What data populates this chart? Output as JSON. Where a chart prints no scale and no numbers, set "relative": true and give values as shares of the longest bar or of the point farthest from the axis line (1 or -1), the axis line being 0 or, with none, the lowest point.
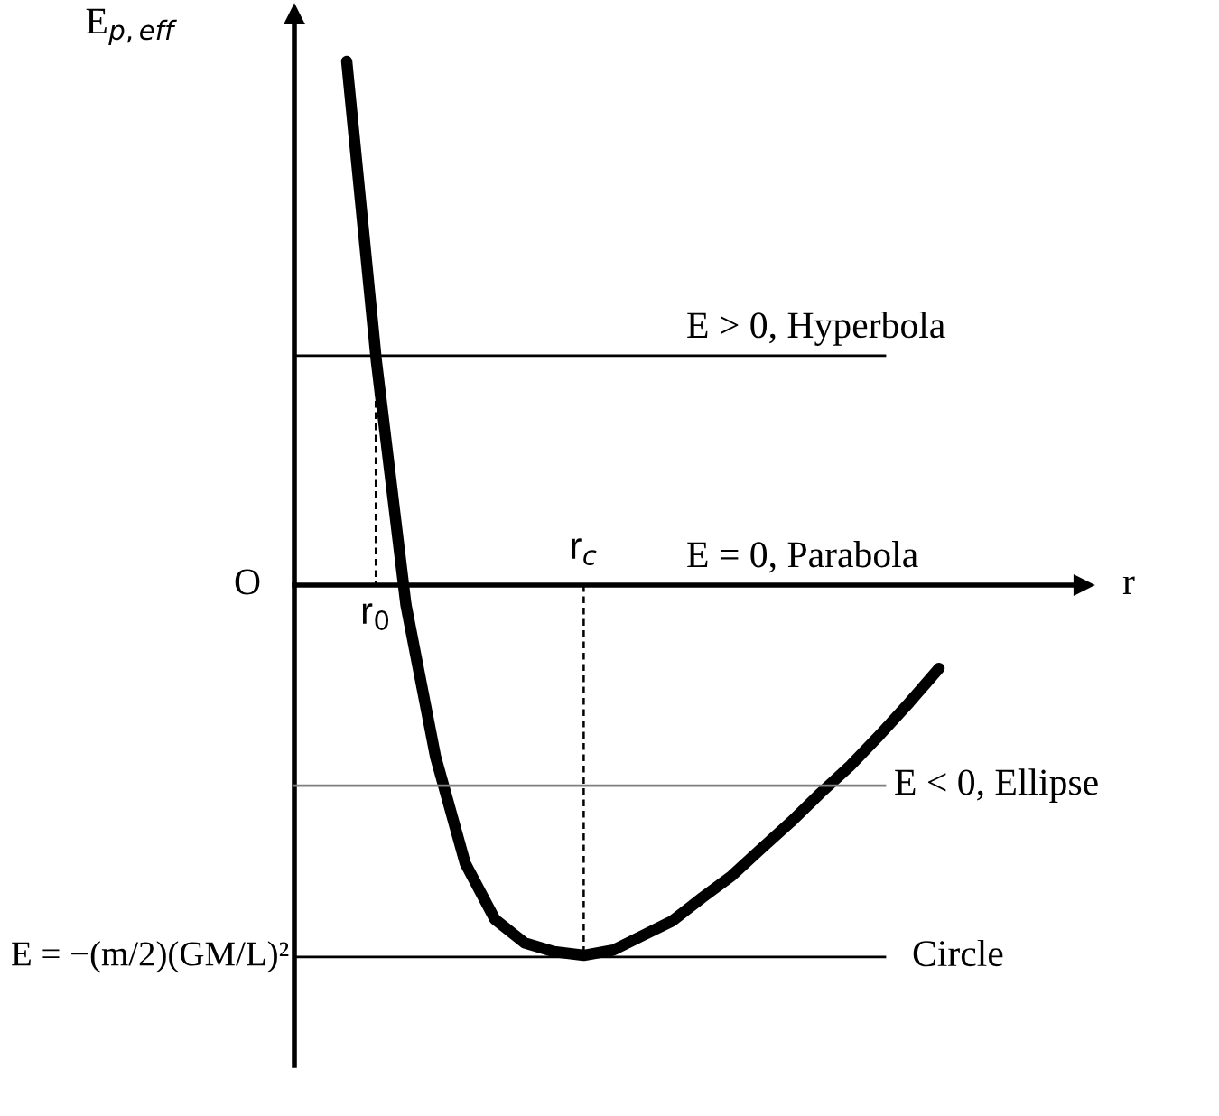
{
  "chart_data": {
    "type": "line",
    "relative": true,
    "xlabel": "r",
    "ylabel": "E$_{p,eff}$",
    "categories": [
      null,
      null,
      null,
      null,
      null,
      null,
      null,
      null,
      null,
      null,
      null,
      null,
      null,
      null,
      null,
      null,
      null,
      null,
      null,
      null,
      null
    ],
    "series": [
      {
        "color": "#000000",
        "values": [
          1.0,
          0.428,
          -0.038,
          -0.328,
          -0.531,
          -0.638,
          -0.683,
          -0.7,
          -0.707,
          -0.697,
          -0.669,
          -0.641,
          -0.597,
          -0.555,
          -0.503,
          -0.452,
          -0.397,
          -0.345,
          -0.286,
          -0.224,
          -0.159
        ]
      }
    ],
    "ref_lines": [
      {
        "axis": "y",
        "value": 0.438,
        "label": "E > 0, Hyperbola",
        "color": "#000000"
      },
      {
        "axis": "y",
        "value": 0,
        "label": "E = 0, Parabola",
        "color": "#000000"
      },
      {
        "axis": "y",
        "value": -0.383,
        "label": "E < 0, Ellipse",
        "color": "#808080"
      },
      {
        "axis": "y",
        "value": -0.71,
        "label": "Circle",
        "color": "#000000"
      }
    ],
    "annotations": [
      {
        "text": "O"
      },
      {
        "text": "r$_{0}$"
      },
      {
        "text": "r$_{c}$"
      },
      "E = −(m/2)(GM/L)²"
    ],
    "legend": false,
    "marker": "none",
    "line_style": "solid"
  }
}
